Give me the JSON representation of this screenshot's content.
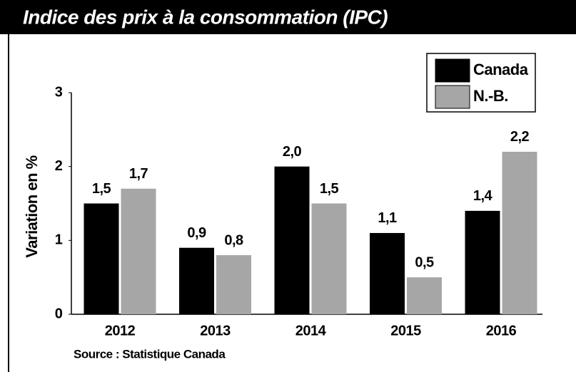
{
  "chart_data": {
    "type": "bar",
    "title": "Indice des prix à la consommation (IPC)",
    "y_label": "Variation en %",
    "source": "Source : Statistique Canada",
    "categories": [
      "2012",
      "2013",
      "2014",
      "2015",
      "2016"
    ],
    "series": [
      {
        "name": "Canada",
        "color": "#000000",
        "values": [
          1.5,
          0.9,
          2.0,
          1.1,
          1.4
        ],
        "value_labels": [
          "1,5",
          "0,9",
          "2,0",
          "1,1",
          "1,4"
        ]
      },
      {
        "name": "N.-B.",
        "color": "#a6a6a6",
        "values": [
          1.7,
          0.8,
          1.5,
          0.5,
          2.2
        ],
        "value_labels": [
          "1,7",
          "0,8",
          "1,5",
          "0,5",
          "2,2"
        ]
      }
    ],
    "ylim": [
      0,
      3
    ],
    "yticks": [
      0,
      1,
      2,
      3
    ],
    "grid": false,
    "legend": "top-right"
  }
}
